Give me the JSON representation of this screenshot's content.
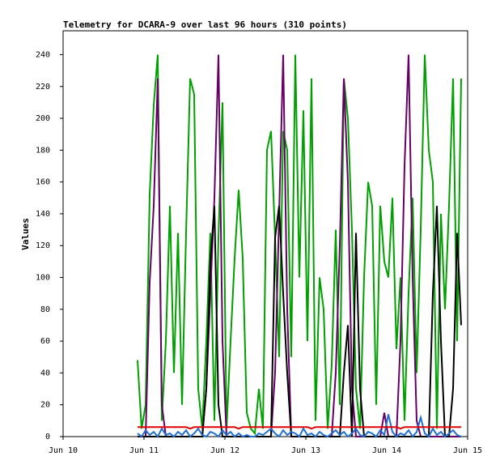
{
  "chart_data": {
    "type": "line",
    "title": "Telemetry for DCARA-9 over last 96 hours (310 points)",
    "ylabel": "Values",
    "x": [
      0.92,
      0.97,
      1.02,
      1.07,
      1.12,
      1.17,
      1.22,
      1.27,
      1.32,
      1.37,
      1.42,
      1.47,
      1.52,
      1.57,
      1.62,
      1.67,
      1.72,
      1.77,
      1.82,
      1.87,
      1.92,
      1.97,
      2.02,
      2.07,
      2.12,
      2.17,
      2.22,
      2.27,
      2.32,
      2.37,
      2.42,
      2.47,
      2.52,
      2.57,
      2.62,
      2.67,
      2.72,
      2.77,
      2.82,
      2.87,
      2.92,
      2.97,
      3.02,
      3.07,
      3.12,
      3.17,
      3.22,
      3.27,
      3.32,
      3.37,
      3.42,
      3.47,
      3.52,
      3.57,
      3.62,
      3.67,
      3.72,
      3.77,
      3.82,
      3.87,
      3.92,
      3.97,
      4.02,
      4.07,
      4.12,
      4.17,
      4.22,
      4.27,
      4.32,
      4.37,
      4.42,
      4.47,
      4.52,
      4.57,
      4.62,
      4.67,
      4.72,
      4.77,
      4.82,
      4.87,
      4.92
    ],
    "xlim": [
      0,
      5
    ],
    "xticks": [
      {
        "value": 0,
        "label": "Jun 10"
      },
      {
        "value": 1,
        "label": "Jun 11"
      },
      {
        "value": 2,
        "label": "Jun 12"
      },
      {
        "value": 3,
        "label": "Jun 13"
      },
      {
        "value": 4,
        "label": "Jun 14"
      },
      {
        "value": 5,
        "label": "Jun 15"
      }
    ],
    "ylim": [
      0,
      255
    ],
    "yticks": [
      0,
      20,
      40,
      60,
      80,
      100,
      120,
      140,
      160,
      180,
      200,
      220,
      240
    ],
    "grid": false,
    "series": [
      {
        "color": "#00a000",
        "values": [
          48,
          5,
          20,
          152,
          208,
          240,
          10,
          60,
          145,
          40,
          128,
          20,
          128,
          225,
          215,
          30,
          5,
          60,
          128,
          10,
          125,
          210,
          5,
          60,
          112,
          155,
          112,
          15,
          5,
          2,
          30,
          5,
          180,
          192,
          125,
          50,
          192,
          180,
          50,
          240,
          100,
          205,
          60,
          225,
          10,
          100,
          80,
          5,
          45,
          130,
          20,
          225,
          200,
          130,
          30,
          5,
          100,
          160,
          145,
          20,
          145,
          110,
          100,
          150,
          55,
          100,
          10,
          90,
          150,
          40,
          130,
          240,
          180,
          160,
          5,
          140,
          80,
          145,
          225,
          60,
          225
        ]
      },
      {
        "color": "#660066",
        "values": [
          0,
          0,
          0,
          97,
          145,
          225,
          20,
          0,
          0,
          0,
          0,
          0,
          0,
          0,
          0,
          0,
          0,
          30,
          90,
          150,
          240,
          60,
          0,
          0,
          0,
          0,
          0,
          0,
          0,
          0,
          0,
          0,
          0,
          0,
          40,
          140,
          240,
          80,
          0,
          0,
          0,
          0,
          0,
          0,
          0,
          0,
          0,
          0,
          0,
          40,
          120,
          225,
          160,
          30,
          0,
          0,
          0,
          0,
          0,
          0,
          0,
          15,
          0,
          0,
          0,
          60,
          170,
          240,
          100,
          10,
          0,
          0,
          0,
          0,
          0,
          0,
          0,
          0,
          0,
          0,
          0
        ]
      },
      {
        "color": "#000000",
        "values": [
          0,
          0,
          0,
          0,
          0,
          0,
          0,
          0,
          0,
          0,
          0,
          0,
          0,
          0,
          0,
          0,
          0,
          30,
          110,
          145,
          20,
          0,
          0,
          0,
          0,
          0,
          0,
          0,
          0,
          0,
          0,
          0,
          0,
          0,
          125,
          145,
          90,
          40,
          0,
          0,
          0,
          0,
          0,
          0,
          0,
          0,
          0,
          0,
          0,
          0,
          0,
          40,
          70,
          0,
          128,
          30,
          0,
          0,
          0,
          0,
          0,
          0,
          0,
          0,
          0,
          0,
          0,
          0,
          0,
          0,
          0,
          0,
          0,
          90,
          145,
          60,
          0,
          0,
          30,
          128,
          70
        ]
      },
      {
        "color": "#1f6fd0",
        "values": [
          2,
          0,
          4,
          1,
          3,
          0,
          5,
          1,
          2,
          0,
          3,
          1,
          4,
          0,
          2,
          5,
          1,
          0,
          3,
          2,
          0,
          4,
          1,
          3,
          0,
          2,
          0,
          1,
          0,
          0,
          2,
          1,
          3,
          5,
          2,
          0,
          4,
          1,
          3,
          2,
          0,
          5,
          1,
          2,
          0,
          3,
          1,
          0,
          2,
          4,
          1,
          3,
          0,
          2,
          5,
          1,
          0,
          3,
          2,
          0,
          4,
          1,
          14,
          3,
          0,
          2,
          1,
          4,
          0,
          3,
          12,
          2,
          0,
          5,
          1,
          3,
          0,
          2,
          4,
          1,
          0
        ]
      },
      {
        "color": "#e00000",
        "values": [
          6,
          6,
          6,
          6,
          6,
          6,
          6,
          6,
          6,
          6,
          6,
          6,
          6,
          5,
          6,
          6,
          6,
          6,
          6,
          6,
          6,
          6,
          6,
          6,
          6,
          5,
          6,
          6,
          6,
          6,
          6,
          6,
          6,
          6,
          6,
          6,
          6,
          6,
          6,
          6,
          6,
          6,
          6,
          5,
          6,
          6,
          6,
          6,
          6,
          6,
          6,
          6,
          6,
          6,
          6,
          6,
          6,
          6,
          6,
          6,
          6,
          6,
          6,
          6,
          6,
          5,
          6,
          6,
          6,
          6,
          6,
          6,
          6,
          6,
          6,
          6,
          6,
          6,
          6,
          6,
          6
        ]
      }
    ]
  }
}
